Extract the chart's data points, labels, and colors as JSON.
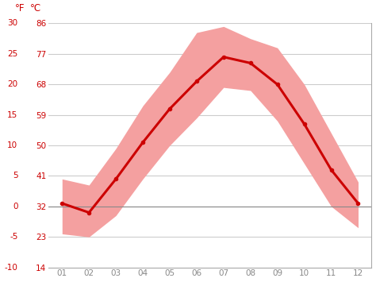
{
  "months": [
    1,
    2,
    3,
    4,
    5,
    6,
    7,
    8,
    9,
    10,
    11,
    12
  ],
  "month_labels": [
    "01",
    "02",
    "03",
    "04",
    "05",
    "06",
    "07",
    "08",
    "09",
    "10",
    "11",
    "12"
  ],
  "mean_temp_c": [
    0.5,
    -1.0,
    4.5,
    10.5,
    16.0,
    20.5,
    24.5,
    23.5,
    20.0,
    13.5,
    6.0,
    0.5
  ],
  "upper_band_c": [
    4.5,
    3.5,
    9.5,
    16.5,
    22.0,
    28.5,
    29.5,
    27.5,
    26.0,
    20.0,
    12.0,
    4.0
  ],
  "lower_band_c": [
    -4.5,
    -5.0,
    -1.5,
    4.5,
    10.0,
    14.5,
    19.5,
    19.0,
    14.0,
    7.0,
    0.0,
    -3.5
  ],
  "line_color": "#cc0000",
  "band_color": "#f4a0a0",
  "zero_line_color": "#888888",
  "grid_color": "#cccccc",
  "tick_color_red": "#cc0000",
  "tick_color_gray": "#888888",
  "background_color": "#ffffff",
  "spine_color": "#aaaaaa",
  "ylim_c": [
    -10,
    30
  ],
  "yticks_c": [
    -10,
    -5,
    0,
    5,
    10,
    15,
    20,
    25,
    30
  ],
  "yticks_f": [
    14,
    23,
    32,
    41,
    50,
    59,
    68,
    77,
    86
  ],
  "ylabel_f": "°F",
  "ylabel_c": "°C",
  "figsize": [
    4.74,
    3.55
  ],
  "dpi": 100
}
